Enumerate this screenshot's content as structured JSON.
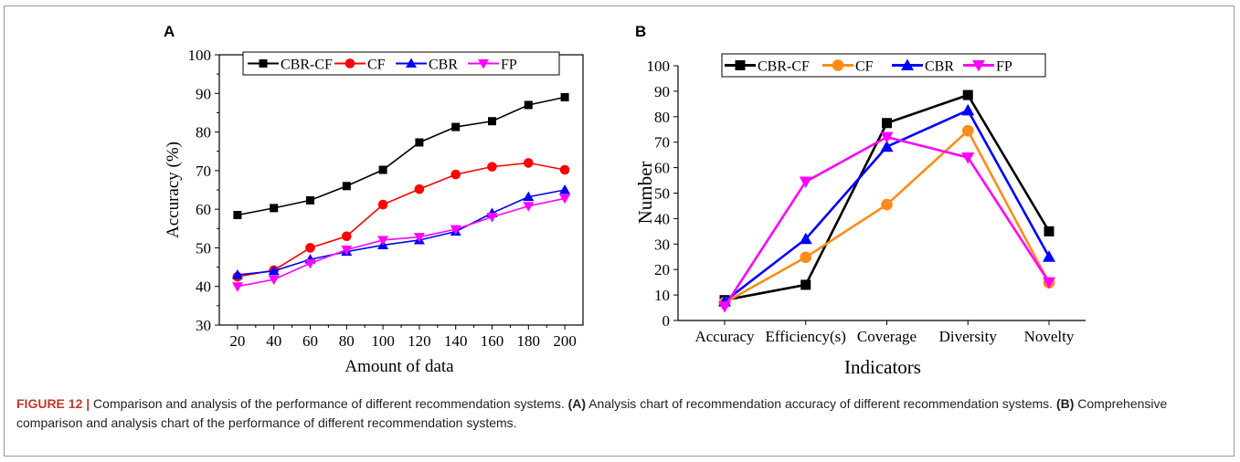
{
  "caption": {
    "figure_label": "FIGURE 12 |",
    "text1": " Comparison and analysis of the performance of different recommendation systems. ",
    "a_label": "(A)",
    "text2": " Analysis chart of recommendation accuracy of different recommendation systems. ",
    "b_label": "(B)",
    "text3": " Comprehensive comparison and analysis chart of the performance of different recommendation systems."
  },
  "chart_data": [
    {
      "panel": "A",
      "type": "line",
      "xlabel": "Amount of data",
      "ylabel": "Accuracy  (%)",
      "x": [
        20,
        40,
        60,
        80,
        100,
        120,
        140,
        160,
        180,
        200
      ],
      "xlim": [
        10,
        210
      ],
      "ylim": [
        30,
        100
      ],
      "yticks": [
        30,
        40,
        50,
        60,
        70,
        80,
        90,
        100
      ],
      "legend_position": "top-left",
      "series": [
        {
          "name": "CBR-CF",
          "color": "#000000",
          "marker": "square",
          "values": [
            58.5,
            60.3,
            62.3,
            66,
            70.2,
            77.3,
            81.3,
            82.8,
            87,
            89
          ]
        },
        {
          "name": "CF",
          "color": "#ff0000",
          "marker": "circle",
          "values": [
            42.5,
            44.2,
            50,
            53,
            61.2,
            65.2,
            69,
            71,
            72,
            70.2
          ]
        },
        {
          "name": "CBR",
          "color": "#0000ff",
          "marker": "triangle-up",
          "values": [
            43,
            44,
            47,
            49,
            50.7,
            52,
            54.2,
            59,
            63.2,
            65
          ]
        },
        {
          "name": "FP",
          "color": "#ff00ff",
          "marker": "triangle-down",
          "values": [
            40,
            41.8,
            46,
            49.5,
            52,
            52.8,
            54.8,
            58,
            60.8,
            62.8
          ]
        }
      ]
    },
    {
      "panel": "B",
      "type": "line",
      "xlabel": "Indicators",
      "ylabel": "Number",
      "categories": [
        "Accuracy",
        "Efficiency(s)",
        "Coverage",
        "Diversity",
        "Novelty"
      ],
      "ylim": [
        0,
        100
      ],
      "yticks": [
        0,
        10,
        20,
        30,
        40,
        50,
        60,
        70,
        80,
        90,
        100
      ],
      "legend_position": "top",
      "series": [
        {
          "name": "CBR-CF",
          "color": "#000000",
          "marker": "square",
          "values": [
            8,
            14,
            77.5,
            88.5,
            35
          ]
        },
        {
          "name": "CF",
          "color": "#ff8c1a",
          "marker": "circle",
          "values": [
            7,
            24.8,
            45.5,
            74.5,
            14.8
          ]
        },
        {
          "name": "CBR",
          "color": "#0000ff",
          "marker": "triangle-up",
          "values": [
            7.5,
            32,
            68.2,
            82.5,
            25
          ]
        },
        {
          "name": "FP",
          "color": "#ff00ff",
          "marker": "triangle-down",
          "values": [
            5.5,
            54.5,
            72,
            64,
            15
          ]
        }
      ]
    }
  ]
}
